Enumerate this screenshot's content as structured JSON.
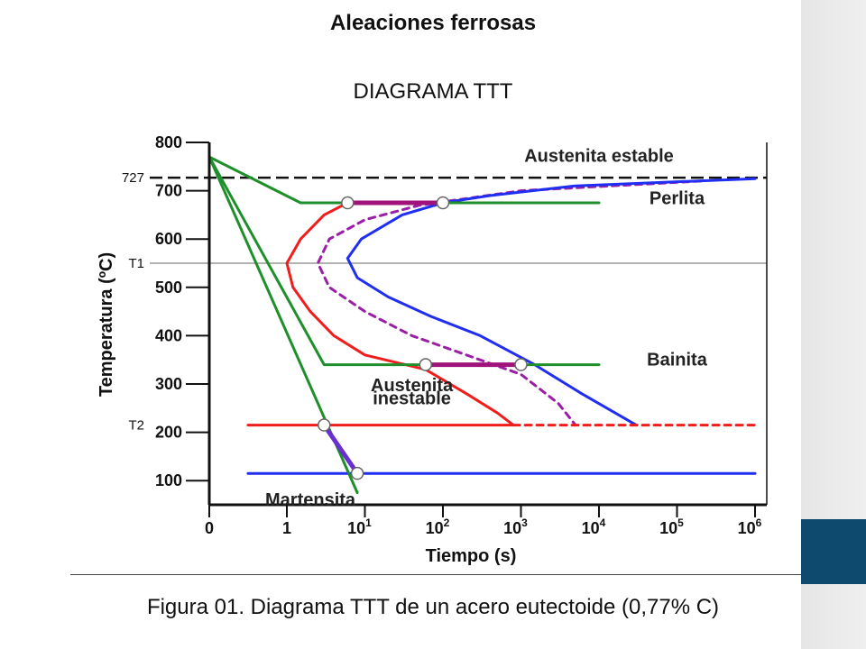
{
  "slide": {
    "title": "Aleaciones ferrosas",
    "subtitle": "DIAGRAMA TTT",
    "caption": "Figura 01. Diagrama TTT de un acero eutectoide (0,77% C)"
  },
  "colors": {
    "accent": "#0e4a6e",
    "red": "#f01d1d",
    "blue": "#1f2ef0",
    "purple": "#9b1fa6",
    "green": "#1e8f2a",
    "black": "#111111"
  },
  "chart_data": {
    "type": "line",
    "xlabel": "Tiempo (s)",
    "ylabel": "Temperatura (ºC)",
    "x_scale": "log",
    "xlim": [
      0,
      1000000
    ],
    "ylim": [
      50,
      800
    ],
    "x_ticks": [
      {
        "value": 0,
        "label": "0"
      },
      {
        "value": 1,
        "label": "1"
      },
      {
        "value": 10,
        "label": "10",
        "exp": "1"
      },
      {
        "value": 100,
        "label": "10",
        "exp": "2"
      },
      {
        "value": 1000,
        "label": "10",
        "exp": "3"
      },
      {
        "value": 10000,
        "label": "10",
        "exp": "4"
      },
      {
        "value": 100000,
        "label": "10",
        "exp": "5"
      },
      {
        "value": 1000000,
        "label": "10",
        "exp": "6"
      }
    ],
    "y_ticks": [
      {
        "value": 800,
        "label": "800"
      },
      {
        "value": 700,
        "label": "700"
      },
      {
        "value": 600,
        "label": "600"
      },
      {
        "value": 500,
        "label": "500"
      },
      {
        "value": 400,
        "label": "400"
      },
      {
        "value": 300,
        "label": "300"
      },
      {
        "value": 200,
        "label": "200"
      },
      {
        "value": 100,
        "label": "100"
      }
    ],
    "reference_lines": [
      {
        "y": 727,
        "label": "727",
        "style": "dashed",
        "color": "#111111"
      },
      {
        "y": 550,
        "label": "T1",
        "style": "solid",
        "color": "#9a9a9a"
      },
      {
        "y": 215,
        "label": "T2",
        "style": "none",
        "color": "#111111"
      }
    ],
    "series": [
      {
        "key": "start",
        "color": "#f01d1d",
        "dash": false,
        "points": [
          [
            6,
            675
          ],
          [
            3,
            650
          ],
          [
            1.5,
            600
          ],
          [
            1,
            550
          ],
          [
            1.2,
            500
          ],
          [
            2,
            450
          ],
          [
            4,
            400
          ],
          [
            10,
            360
          ],
          [
            60,
            330
          ],
          [
            200,
            280
          ],
          [
            500,
            240
          ],
          [
            800,
            215
          ]
        ]
      },
      {
        "key": "mid",
        "color": "#9b1fa6",
        "dash": true,
        "points": [
          [
            200000,
            720
          ],
          [
            1000,
            700
          ],
          [
            50,
            670
          ],
          [
            10,
            640
          ],
          [
            3.5,
            600
          ],
          [
            2.5,
            550
          ],
          [
            3.5,
            500
          ],
          [
            10,
            450
          ],
          [
            40,
            400
          ],
          [
            200,
            360
          ],
          [
            1000,
            320
          ],
          [
            3000,
            260
          ],
          [
            5000,
            215
          ]
        ]
      },
      {
        "key": "finish",
        "color": "#1f2ef0",
        "dash": false,
        "points": [
          [
            1000000,
            725
          ],
          [
            5000,
            710
          ],
          [
            400,
            690
          ],
          [
            100,
            675
          ],
          [
            30,
            650
          ],
          [
            9,
            600
          ],
          [
            6,
            560
          ],
          [
            8,
            520
          ],
          [
            20,
            480
          ],
          [
            70,
            440
          ],
          [
            300,
            400
          ],
          [
            1500,
            340
          ],
          [
            6000,
            280
          ],
          [
            30000,
            215
          ]
        ]
      },
      {
        "key": "ms",
        "color": "#f01d1d",
        "dash": false,
        "points": [
          [
            0.5,
            215
          ],
          [
            800,
            215
          ]
        ]
      },
      {
        "key": "ms_dash",
        "color": "#f01d1d",
        "dash": true,
        "points": [
          [
            800,
            215
          ],
          [
            1000000,
            215
          ]
        ]
      },
      {
        "key": "mf",
        "color": "#1f2ef0",
        "dash": false,
        "points": [
          [
            0.5,
            115
          ],
          [
            1000000,
            115
          ]
        ]
      },
      {
        "key": "cool1",
        "color": "#1e8f2a",
        "dash": false,
        "points": [
          [
            0,
            770
          ],
          [
            1.5,
            675
          ],
          [
            10000,
            675
          ]
        ]
      },
      {
        "key": "cool2",
        "color": "#1e8f2a",
        "dash": false,
        "points": [
          [
            0,
            770
          ],
          [
            3,
            340
          ],
          [
            10000,
            340
          ]
        ]
      },
      {
        "key": "cool3",
        "color": "#1e8f2a",
        "dash": false,
        "points": [
          [
            0,
            770
          ],
          [
            8,
            75
          ]
        ]
      }
    ],
    "transformations": [
      {
        "key": "perlite",
        "color": "#a0137a",
        "points": [
          [
            6,
            675
          ],
          [
            100,
            675
          ]
        ]
      },
      {
        "key": "bainite",
        "color": "#a0137a",
        "points": [
          [
            60,
            340
          ],
          [
            1000,
            340
          ]
        ]
      },
      {
        "key": "martensite",
        "color": "#6a2fd0",
        "points": [
          [
            3,
            215
          ],
          [
            8,
            115
          ]
        ]
      }
    ],
    "markers": [
      [
        6,
        675
      ],
      [
        100,
        675
      ],
      [
        60,
        340
      ],
      [
        1000,
        340
      ],
      [
        3,
        215
      ],
      [
        8,
        115
      ]
    ],
    "annotations": [
      {
        "key": "austenita_estable",
        "text": "Austenita estable",
        "x": 10000,
        "y": 760
      },
      {
        "key": "perlita",
        "text": "Perlita",
        "x": 100000,
        "y": 672
      },
      {
        "key": "bainita",
        "text": "Bainita",
        "x": 100000,
        "y": 338
      },
      {
        "key": "austenita_inestable_1",
        "text": "Austenita",
        "x": 40,
        "y": 285
      },
      {
        "key": "austenita_inestable_2",
        "text": "inestable",
        "x": 40,
        "y": 258
      },
      {
        "key": "martensita",
        "text": "Martensita",
        "x": 2,
        "y": 48
      }
    ]
  }
}
